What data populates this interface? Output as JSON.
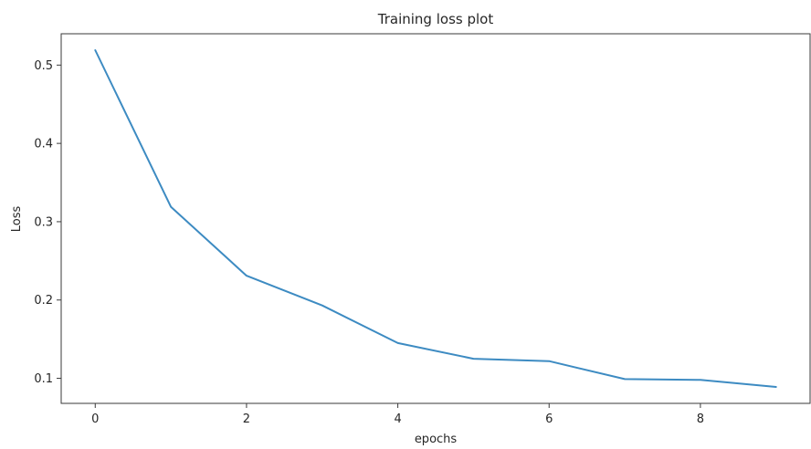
{
  "chart_data": {
    "type": "line",
    "title": "Training loss plot",
    "xlabel": "epochs",
    "ylabel": "Loss",
    "xlim": [
      -0.45,
      9.45
    ],
    "ylim": [
      0.068,
      0.54
    ],
    "xticks": [
      0,
      2,
      4,
      6,
      8
    ],
    "xtick_labels": [
      "0",
      "2",
      "4",
      "6",
      "8"
    ],
    "yticks": [
      0.1,
      0.2,
      0.3,
      0.4,
      0.5
    ],
    "ytick_labels": [
      "0.1",
      "0.2",
      "0.3",
      "0.4",
      "0.5"
    ],
    "grid": false,
    "series": [
      {
        "color": "#3d8bc2",
        "x": [
          0,
          1,
          2,
          3,
          4,
          5,
          6,
          7,
          8,
          9
        ],
        "y": [
          0.519,
          0.319,
          0.231,
          0.193,
          0.145,
          0.125,
          0.122,
          0.099,
          0.098,
          0.089
        ]
      }
    ]
  }
}
